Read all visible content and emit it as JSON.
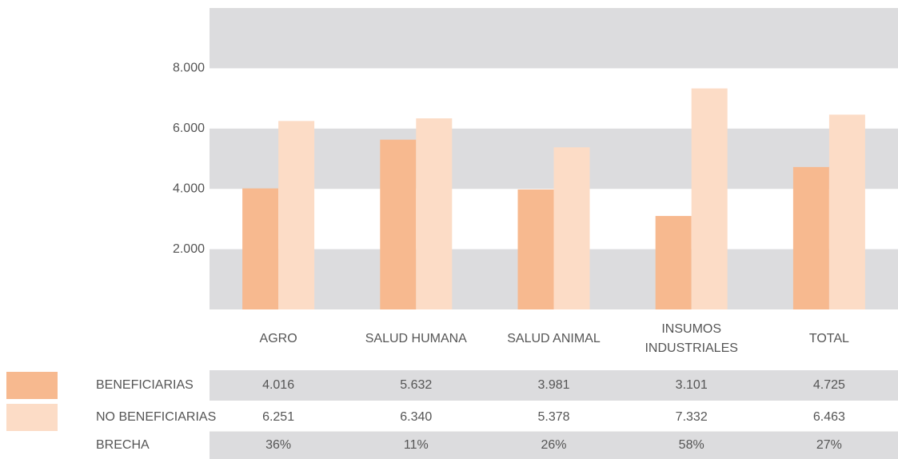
{
  "chart_data": {
    "type": "bar",
    "categories": [
      "AGRO",
      "SALUD HUMANA",
      "SALUD ANIMAL",
      "INSUMOS INDUSTRIALES",
      "TOTAL"
    ],
    "series": [
      {
        "name": "BENEFICIARIAS",
        "color": "#f7b98f",
        "values": [
          4016,
          5632,
          3981,
          3101,
          4725
        ],
        "value_labels": [
          "4.016",
          "5.632",
          "3.981",
          "3.101",
          "4.725"
        ]
      },
      {
        "name": "NO BENEFICIARIAS",
        "color": "#fcdcc6",
        "values": [
          6251,
          6340,
          5378,
          7332,
          6463
        ],
        "value_labels": [
          "6.251",
          "6.340",
          "5.378",
          "7.332",
          "6.463"
        ]
      }
    ],
    "brecha": {
      "name": "BRECHA",
      "values": [
        "36%",
        "11%",
        "26%",
        "58%",
        "27%"
      ]
    },
    "ylim": [
      0,
      10000
    ],
    "yticks": [
      {
        "value": 2000,
        "label": "2.000"
      },
      {
        "value": 4000,
        "label": "4.000"
      },
      {
        "value": 6000,
        "label": "6.000"
      },
      {
        "value": 8000,
        "label": "8.000"
      }
    ],
    "grid": true
  }
}
